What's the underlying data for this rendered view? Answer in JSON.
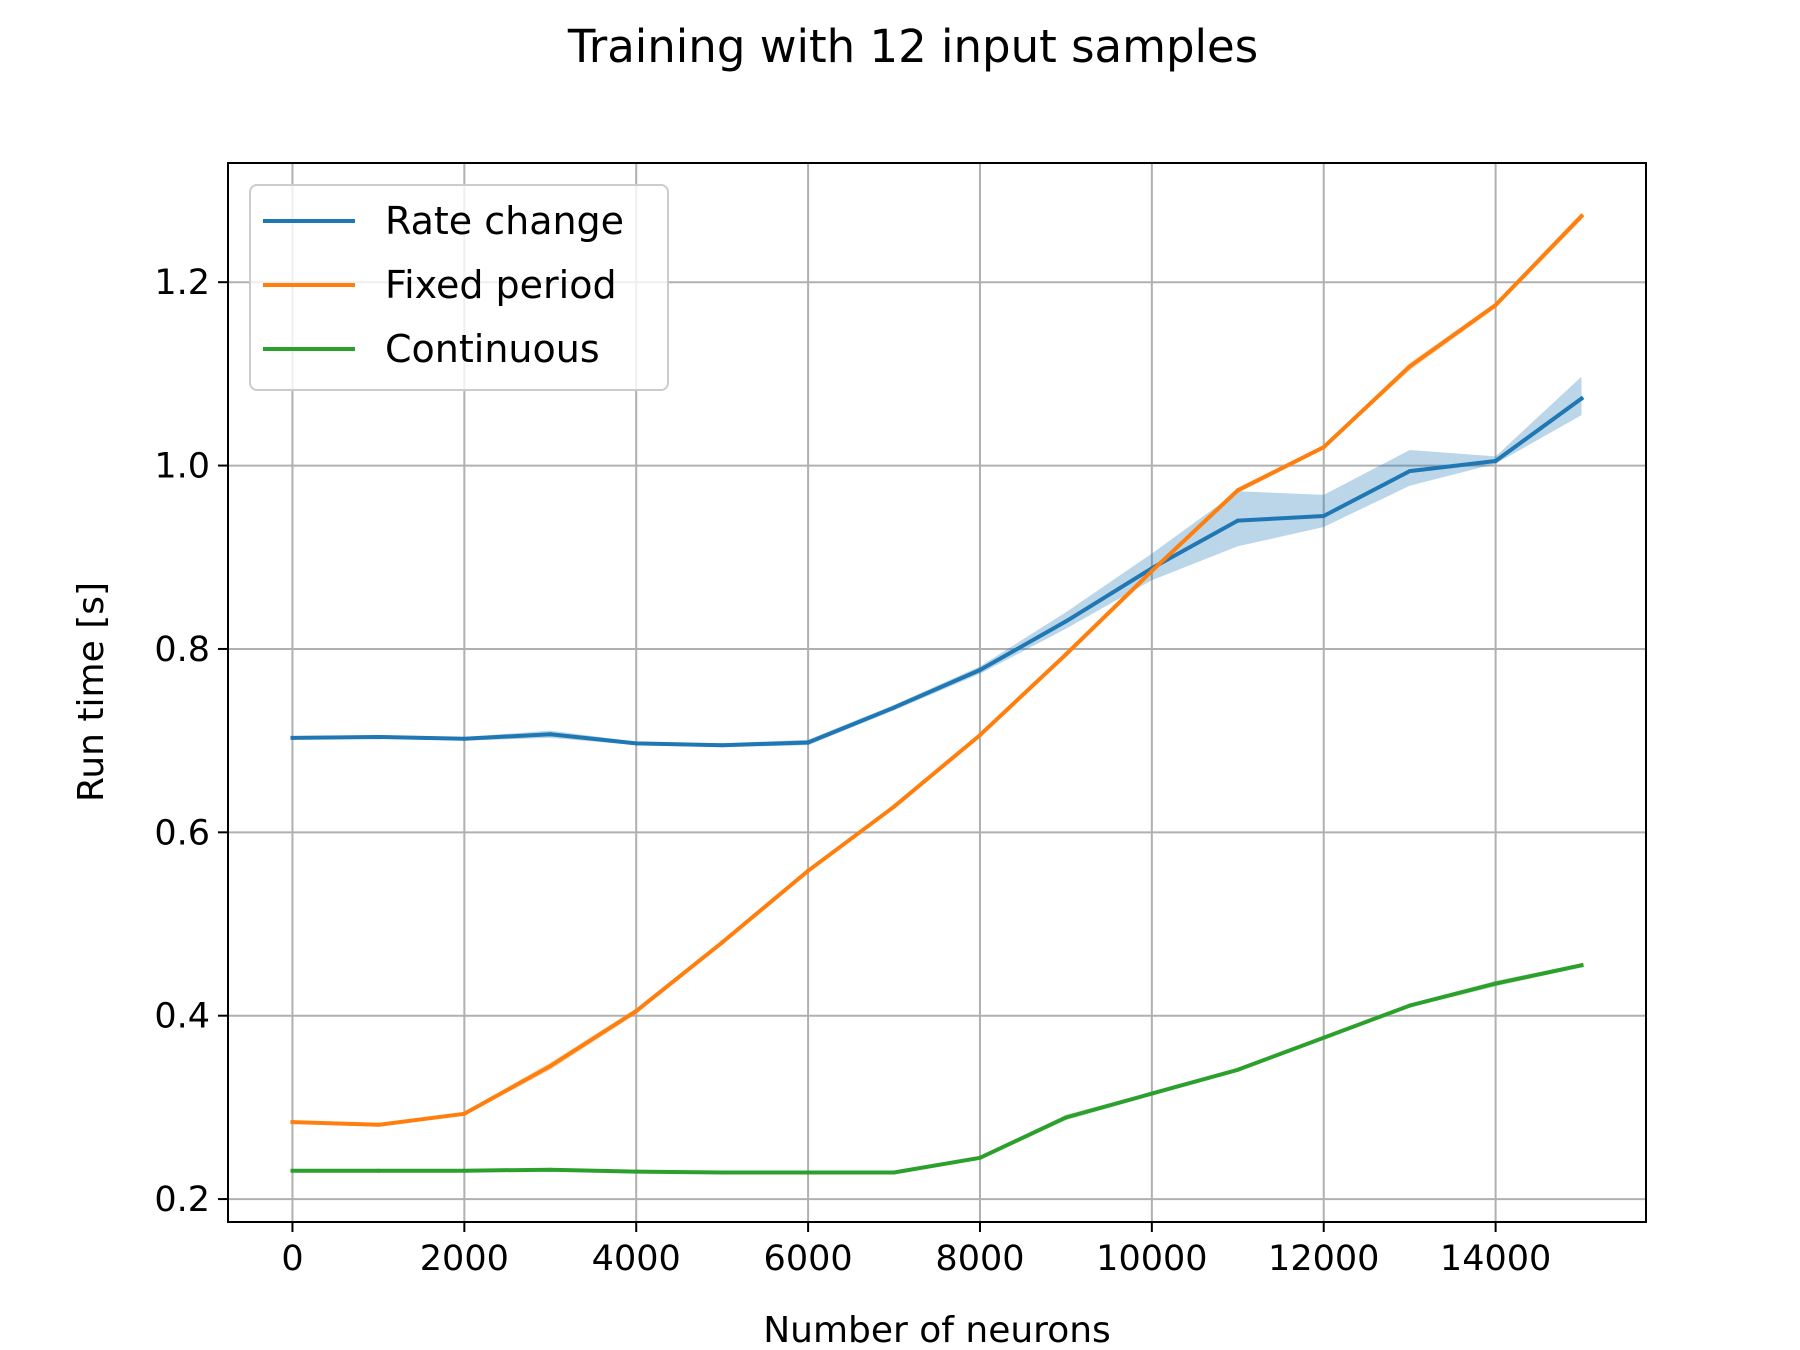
{
  "chart_data": {
    "type": "line",
    "title": "Training with 12 input samples",
    "xlabel": "Number of neurons",
    "ylabel": "Run time [s]",
    "xlim": [
      -750,
      15750
    ],
    "ylim": [
      0.175,
      1.33
    ],
    "x_ticks": [
      "0",
      "2000",
      "4000",
      "6000",
      "8000",
      "10000",
      "12000",
      "14000"
    ],
    "y_ticks": [
      "0.2",
      "0.4",
      "0.6",
      "0.8",
      "1.0",
      "1.2"
    ],
    "grid": true,
    "legend_position": "upper left",
    "x": [
      0,
      1000,
      2000,
      3000,
      4000,
      5000,
      6000,
      7000,
      8000,
      9000,
      10000,
      11000,
      12000,
      13000,
      14000,
      15000
    ],
    "series": [
      {
        "name": "Rate change",
        "color": "#1f77b4",
        "values": [
          0.703,
          0.704,
          0.702,
          0.707,
          0.697,
          0.695,
          0.698,
          0.736,
          0.777,
          0.83,
          0.888,
          0.94,
          0.945,
          0.994,
          1.005,
          1.073
        ],
        "band_low": [
          0.701,
          0.702,
          0.7,
          0.703,
          0.695,
          0.693,
          0.695,
          0.733,
          0.773,
          0.822,
          0.875,
          0.912,
          0.933,
          0.978,
          1.002,
          1.055
        ],
        "band_high": [
          0.705,
          0.706,
          0.704,
          0.711,
          0.699,
          0.697,
          0.701,
          0.739,
          0.781,
          0.84,
          0.904,
          0.972,
          0.968,
          1.017,
          1.01,
          1.097
        ]
      },
      {
        "name": "Fixed period",
        "color": "#ff7f0e",
        "values": [
          0.284,
          0.281,
          0.293,
          0.345,
          0.405,
          0.48,
          0.558,
          0.628,
          0.706,
          0.794,
          0.885,
          0.973,
          1.02,
          1.108,
          1.175,
          1.272
        ],
        "band_low": [
          0.282,
          0.279,
          0.291,
          0.341,
          0.402,
          0.478,
          0.556,
          0.626,
          0.704,
          0.791,
          0.882,
          0.97,
          1.018,
          1.104,
          1.172,
          1.268
        ],
        "band_high": [
          0.286,
          0.283,
          0.295,
          0.349,
          0.408,
          0.482,
          0.56,
          0.63,
          0.708,
          0.797,
          0.888,
          0.976,
          1.022,
          1.112,
          1.178,
          1.276
        ]
      },
      {
        "name": "Continuous",
        "color": "#2ca02c",
        "values": [
          0.231,
          0.231,
          0.231,
          0.232,
          0.23,
          0.229,
          0.229,
          0.229,
          0.245,
          0.289,
          0.315,
          0.341,
          0.376,
          0.411,
          0.435,
          0.455
        ],
        "band_low": [
          0.23,
          0.23,
          0.23,
          0.231,
          0.229,
          0.228,
          0.228,
          0.228,
          0.243,
          0.286,
          0.313,
          0.339,
          0.374,
          0.409,
          0.432,
          0.453
        ],
        "band_high": [
          0.232,
          0.232,
          0.232,
          0.233,
          0.231,
          0.23,
          0.23,
          0.23,
          0.247,
          0.292,
          0.317,
          0.343,
          0.378,
          0.413,
          0.438,
          0.457
        ]
      }
    ]
  }
}
